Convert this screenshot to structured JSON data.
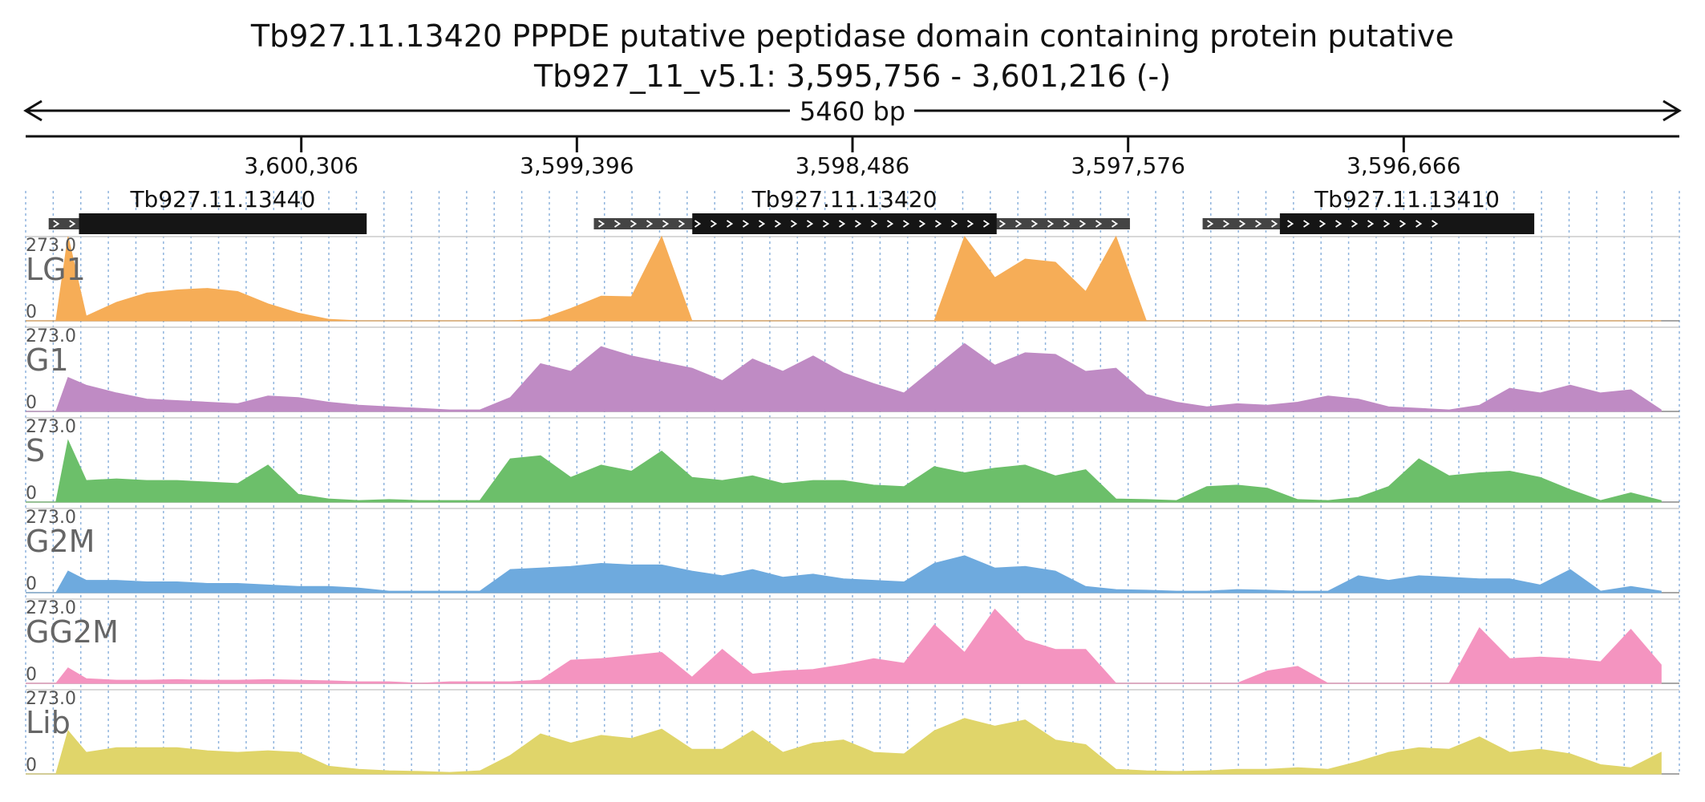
{
  "header": {
    "title": "Tb927.11.13420  PPPDE putative peptidase domain containing protein  putative",
    "location": "Tb927_11_v5.1: 3,595,756 - 3,601,216 (-)",
    "span_label": "5460 bp"
  },
  "chart_data": {
    "type": "area",
    "region": {
      "chrom": "Tb927_11_v5.1",
      "start": 3595756,
      "end": 3601216,
      "strand": "-",
      "span_bp": 5460
    },
    "x_axis": {
      "ticks": [
        {
          "value": 3600306,
          "label": "3,600,306"
        },
        {
          "value": 3599396,
          "label": "3,599,396"
        },
        {
          "value": 3598486,
          "label": "3,598,486"
        },
        {
          "value": 3597576,
          "label": "3,597,576"
        },
        {
          "value": 3596666,
          "label": "3,596,666"
        }
      ]
    },
    "genes": [
      {
        "name": "Tb927.11.13440",
        "utr": [
          3601140,
          3601040
        ],
        "cds": [
          3601040,
          3600090
        ]
      },
      {
        "name": "Tb927.11.13420",
        "utr": [
          3599340,
          3597570
        ],
        "cds": [
          3599015,
          3598010
        ]
      },
      {
        "name": "Tb927.11.13410",
        "utr": [
          3597330,
          3596520
        ],
        "cds": [
          3597075,
          3596235
        ]
      }
    ],
    "ymax_label": "273.0",
    "ymin_label": "0",
    "ylim": [
      0,
      273
    ],
    "colors": {
      "LG1": "#f6ad57",
      "G1": "#bf8bc4",
      "S": "#6cbf6a",
      "G2M": "#6eaade",
      "GG2M": "#f494c0",
      "Lib": "#e0d56a"
    },
    "x": [
      3601216,
      3601116,
      3601076,
      3601016,
      3600916,
      3600816,
      3600716,
      3600616,
      3600516,
      3600416,
      3600316,
      3600216,
      3600116,
      3600016,
      3599916,
      3599816,
      3599716,
      3599616,
      3599516,
      3599416,
      3599316,
      3599216,
      3599116,
      3599016,
      3598916,
      3598816,
      3598716,
      3598616,
      3598516,
      3598416,
      3598316,
      3598216,
      3598116,
      3598016,
      3597916,
      3597816,
      3597716,
      3597616,
      3597516,
      3597416,
      3597316,
      3597216,
      3597116,
      3597016,
      3596916,
      3596816,
      3596716,
      3596616,
      3596516,
      3596416,
      3596316,
      3596216,
      3596116,
      3596016,
      3595916,
      3595816
    ],
    "series": [
      {
        "name": "LG1",
        "values": [
          0,
          0,
          273,
          15,
          60,
          90,
          100,
          105,
          95,
          55,
          25,
          5,
          0,
          0,
          0,
          0,
          0,
          0,
          5,
          40,
          80,
          78,
          273,
          0,
          0,
          0,
          0,
          0,
          0,
          0,
          0,
          0,
          273,
          140,
          200,
          190,
          95,
          273,
          0,
          0,
          0,
          0,
          0,
          0,
          0,
          0,
          0,
          0,
          0,
          0,
          0,
          0,
          0,
          0,
          0,
          0
        ]
      },
      {
        "name": "G1",
        "values": [
          0,
          0,
          110,
          85,
          60,
          40,
          35,
          30,
          25,
          50,
          45,
          30,
          20,
          15,
          10,
          5,
          5,
          45,
          155,
          130,
          210,
          180,
          160,
          140,
          100,
          170,
          130,
          180,
          125,
          90,
          60,
          140,
          220,
          150,
          190,
          185,
          130,
          140,
          55,
          30,
          15,
          25,
          20,
          30,
          50,
          40,
          15,
          10,
          5,
          20,
          75,
          60,
          85,
          60,
          70,
          5
        ]
      },
      {
        "name": "S",
        "values": [
          0,
          0,
          200,
          70,
          75,
          70,
          70,
          65,
          60,
          120,
          25,
          10,
          5,
          8,
          5,
          5,
          5,
          140,
          150,
          80,
          120,
          100,
          165,
          80,
          70,
          85,
          60,
          70,
          70,
          55,
          50,
          115,
          95,
          110,
          120,
          85,
          105,
          10,
          8,
          5,
          50,
          55,
          45,
          8,
          5,
          15,
          50,
          140,
          85,
          95,
          100,
          80,
          40,
          5,
          30,
          5
        ]
      },
      {
        "name": "G2M",
        "values": [
          0,
          0,
          70,
          40,
          40,
          35,
          35,
          30,
          30,
          25,
          20,
          20,
          15,
          5,
          5,
          5,
          5,
          75,
          80,
          85,
          95,
          90,
          90,
          70,
          55,
          75,
          50,
          60,
          45,
          40,
          35,
          95,
          120,
          80,
          85,
          70,
          20,
          10,
          8,
          5,
          5,
          10,
          8,
          5,
          5,
          55,
          40,
          55,
          50,
          45,
          45,
          25,
          75,
          5,
          20,
          5
        ]
      },
      {
        "name": "GG2M",
        "values": [
          0,
          0,
          50,
          15,
          10,
          10,
          12,
          10,
          10,
          12,
          10,
          8,
          5,
          5,
          0,
          5,
          5,
          5,
          10,
          75,
          80,
          90,
          100,
          20,
          110,
          30,
          40,
          45,
          60,
          80,
          65,
          190,
          100,
          240,
          140,
          110,
          110,
          0,
          0,
          0,
          0,
          0,
          40,
          55,
          0,
          0,
          0,
          0,
          0,
          180,
          80,
          85,
          80,
          70,
          175,
          60
        ]
      },
      {
        "name": "Lib",
        "values": [
          0,
          0,
          140,
          70,
          85,
          85,
          85,
          75,
          70,
          75,
          70,
          25,
          15,
          10,
          8,
          5,
          10,
          60,
          130,
          100,
          125,
          115,
          145,
          80,
          80,
          140,
          70,
          100,
          110,
          70,
          65,
          140,
          180,
          155,
          175,
          110,
          95,
          15,
          10,
          8,
          10,
          15,
          15,
          20,
          15,
          40,
          70,
          85,
          80,
          120,
          70,
          80,
          65,
          30,
          20,
          70
        ]
      }
    ]
  }
}
